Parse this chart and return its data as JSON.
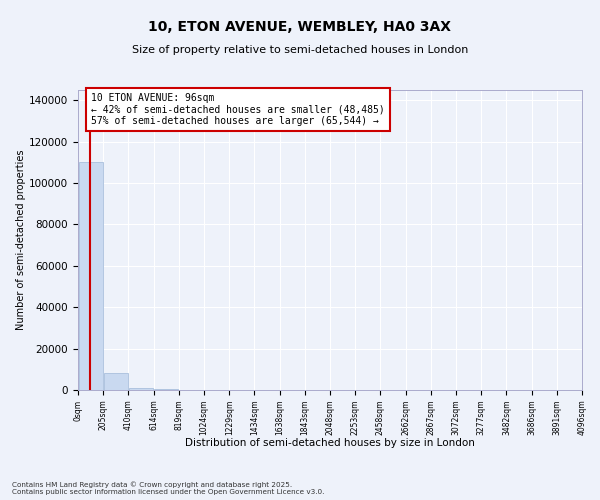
{
  "title": "10, ETON AVENUE, WEMBLEY, HA0 3AX",
  "subtitle": "Size of property relative to semi-detached houses in London",
  "xlabel": "Distribution of semi-detached houses by size in London",
  "ylabel": "Number of semi-detached properties",
  "property_size": 96,
  "annotation_text": "10 ETON AVENUE: 96sqm\n← 42% of semi-detached houses are smaller (48,485)\n57% of semi-detached houses are larger (65,544) →",
  "bar_color": "#c9d9f0",
  "bar_edge_color": "#a0b8d8",
  "vline_color": "#cc0000",
  "annotation_box_color": "#cc0000",
  "background_color": "#eef2fa",
  "grid_color": "#ffffff",
  "footer_text": "Contains HM Land Registry data © Crown copyright and database right 2025.\nContains public sector information licensed under the Open Government Licence v3.0.",
  "bins": [
    0,
    205,
    410,
    614,
    819,
    1024,
    1229,
    1434,
    1638,
    1843,
    2048,
    2253,
    2458,
    2662,
    2867,
    3072,
    3277,
    3482,
    3686,
    3891,
    4096
  ],
  "bin_labels": [
    "0sqm",
    "205sqm",
    "410sqm",
    "614sqm",
    "819sqm",
    "1024sqm",
    "1229sqm",
    "1434sqm",
    "1638sqm",
    "1843sqm",
    "2048sqm",
    "2253sqm",
    "2458sqm",
    "2662sqm",
    "2867sqm",
    "3072sqm",
    "3277sqm",
    "3482sqm",
    "3686sqm",
    "3891sqm",
    "4096sqm"
  ],
  "counts": [
    110000,
    8000,
    1200,
    300,
    100,
    50,
    20,
    10,
    5,
    3,
    2,
    1,
    1,
    1,
    0,
    0,
    0,
    0,
    0,
    0
  ],
  "ylim": [
    0,
    145000
  ],
  "yticks": [
    0,
    20000,
    40000,
    60000,
    80000,
    100000,
    120000,
    140000
  ]
}
